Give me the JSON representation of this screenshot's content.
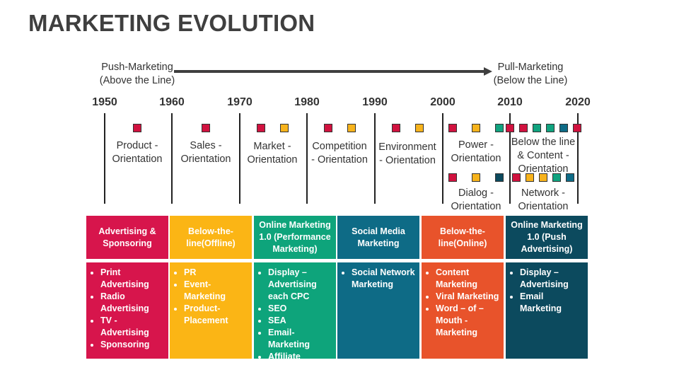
{
  "title": "MARKETING EVOLUTION",
  "timeline": {
    "push_label": [
      "Push-Marketing",
      "(Above the Line)"
    ],
    "pull_label": [
      "Pull-Marketing",
      "(Below the Line)"
    ],
    "years": [
      "1950",
      "1960",
      "1970",
      "1980",
      "1990",
      "2000",
      "2010",
      "2020"
    ]
  },
  "orientations": [
    {
      "lines": [
        "Product -",
        "Orientation"
      ],
      "squares": [
        "red"
      ]
    },
    {
      "lines": [
        "Sales -",
        "Orientation"
      ],
      "squares": [
        "red"
      ]
    },
    {
      "lines": [
        "Market -",
        "Orientation"
      ],
      "squares": [
        "red",
        "orange"
      ]
    },
    {
      "lines": [
        "Competition",
        "- Orientation"
      ],
      "squares": [
        "red",
        "orange"
      ]
    },
    {
      "lines": [
        "Environment",
        "- Orientation"
      ],
      "squares": [
        "red",
        "orange"
      ]
    },
    {
      "lines": [
        "Power -",
        "Orientation"
      ],
      "squares": [
        "red",
        "orange",
        "green"
      ]
    },
    {
      "lines": [
        "Below the line",
        "& Content -",
        "Orientation"
      ],
      "squares": [
        "red",
        "red",
        "green",
        "green",
        "teal",
        "red"
      ]
    },
    {
      "lines": [
        "Dialog -",
        "Orientation"
      ],
      "squares": [
        "red",
        "orange",
        "navy"
      ]
    },
    {
      "lines": [
        "Network -",
        "Orientation"
      ],
      "squares": [
        "red",
        "orange",
        "orange",
        "green",
        "teal"
      ]
    }
  ],
  "square_colors": {
    "red": "#d1123f",
    "orange": "#f7b31c",
    "green": "#10a37f",
    "teal": "#0e6b86",
    "navy": "#0c4a5e"
  },
  "columns": [
    {
      "header": "Advertising & Sponsoring",
      "color": "#d7154c",
      "items": [
        "Print Advertising",
        "Radio Advertising",
        "TV - Advertising",
        "Sponsoring"
      ]
    },
    {
      "header": "Below-the-line(Offline)",
      "color": "#fbb515",
      "items": [
        "PR",
        "Event-Marketing",
        "Product-Placement"
      ]
    },
    {
      "header": "Online Marketing 1.0 (Performance Marketing)",
      "color": "#0ea47b",
      "items": [
        "Display – Advertising each CPC",
        "SEO",
        "SEA",
        "Email-Marketing",
        "Affiliate Marketing"
      ]
    },
    {
      "header": "Social Media Marketing",
      "color": "#0e6b86",
      "items": [
        "Social Network Marketing"
      ]
    },
    {
      "header": "Below-the-line(Online)",
      "color": "#e8532b",
      "items": [
        "Content Marketing",
        "Viral Marketing",
        "Word – of – Mouth - Marketing"
      ]
    },
    {
      "header": "Online Marketing 1.0 (Push Advertising)",
      "color": "#0c4a5e",
      "items": [
        "Display – Advertising",
        "Email Marketing"
      ]
    }
  ]
}
